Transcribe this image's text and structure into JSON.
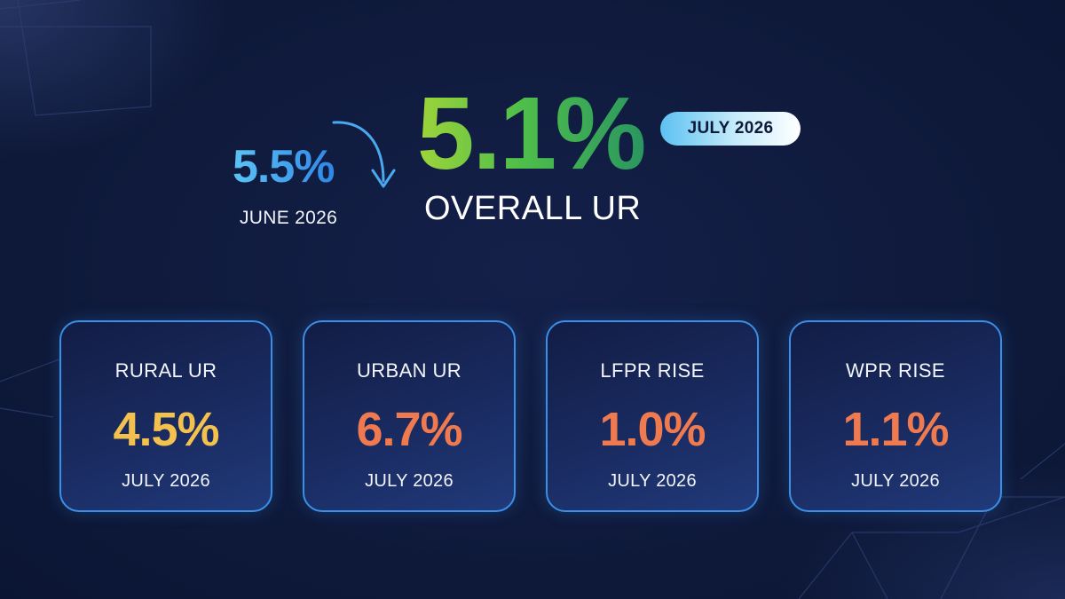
{
  "headline": {
    "previous": {
      "value": "5.5%",
      "period": "JUNE 2026"
    },
    "current": {
      "value": "5.1%",
      "label": "OVERALL UR",
      "period": "JULY 2026"
    },
    "arrow_icon": "curved-down-arrow-icon"
  },
  "cards": [
    {
      "title": "RURAL UR",
      "value": "4.5%",
      "period": "JULY 2026",
      "value_color": "#f2c14e"
    },
    {
      "title": "URBAN UR",
      "value": "6.7%",
      "period": "JULY 2026",
      "value_color": "#f07a4f"
    },
    {
      "title": "LFPR RISE",
      "value": "1.0%",
      "period": "JULY 2026",
      "value_color": "#f07a4f"
    },
    {
      "title": "WPR RISE",
      "value": "1.1%",
      "period": "JULY 2026",
      "value_color": "#f07a4f"
    }
  ],
  "colors": {
    "background": "#0f1a3c",
    "card_border": "#3a8fe8",
    "previous_value": "#4aa8ef",
    "current_value": "#5cbf45"
  }
}
